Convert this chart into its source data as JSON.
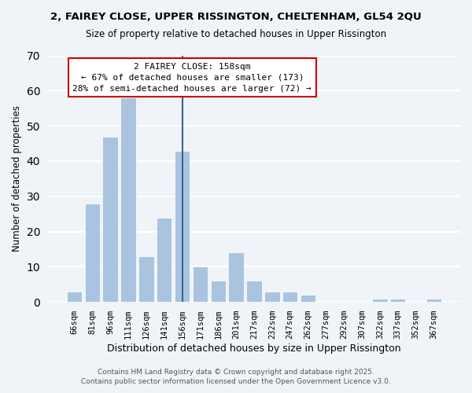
{
  "title1": "2, FAIREY CLOSE, UPPER RISSINGTON, CHELTENHAM, GL54 2QU",
  "title2": "Size of property relative to detached houses in Upper Rissington",
  "xlabel": "Distribution of detached houses by size in Upper Rissington",
  "ylabel": "Number of detached properties",
  "categories": [
    "66sqm",
    "81sqm",
    "96sqm",
    "111sqm",
    "126sqm",
    "141sqm",
    "156sqm",
    "171sqm",
    "186sqm",
    "201sqm",
    "217sqm",
    "232sqm",
    "247sqm",
    "262sqm",
    "277sqm",
    "292sqm",
    "307sqm",
    "322sqm",
    "337sqm",
    "352sqm",
    "367sqm"
  ],
  "values": [
    3,
    28,
    47,
    58,
    13,
    24,
    43,
    10,
    6,
    14,
    6,
    3,
    3,
    2,
    0,
    0,
    0,
    1,
    1,
    0,
    1
  ],
  "bar_color": "#aac4e0",
  "reference_line_index": 6,
  "reference_line_color": "#336699",
  "ylim": [
    0,
    70
  ],
  "yticks": [
    0,
    10,
    20,
    30,
    40,
    50,
    60,
    70
  ],
  "annotation_title": "2 FAIREY CLOSE: 158sqm",
  "annotation_line1": "← 67% of detached houses are smaller (173)",
  "annotation_line2": "28% of semi-detached houses are larger (72) →",
  "annotation_box_facecolor": "#ffffff",
  "annotation_box_edgecolor": "#cc0000",
  "footer1": "Contains HM Land Registry data © Crown copyright and database right 2025.",
  "footer2": "Contains public sector information licensed under the Open Government Licence v3.0.",
  "bg_color": "#f0f4f8",
  "grid_color": "#ffffff"
}
